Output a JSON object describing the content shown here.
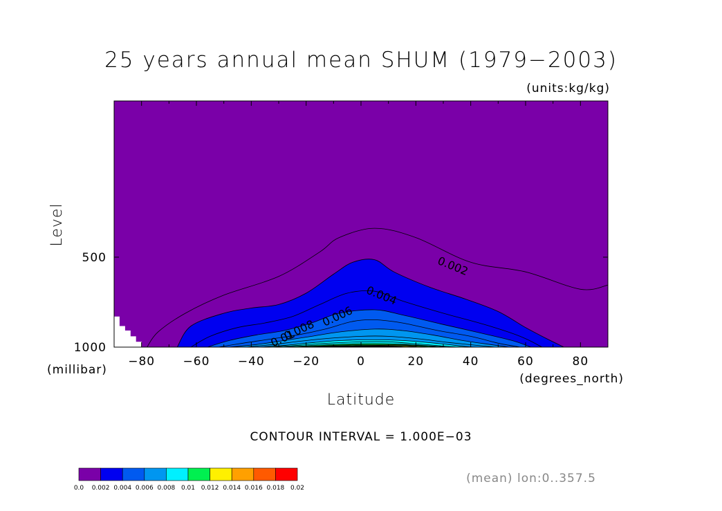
{
  "chart_data": {
    "type": "heatmap",
    "title": "25 years annual mean SHUM  (1979−2003)",
    "units": "(units:kg/kg)",
    "xlabel": "Latitude",
    "ylabel": "Level",
    "x_unit": "(degrees_north)",
    "y_unit": "(millibar)",
    "xlim": [
      -90,
      90
    ],
    "x_ticks": [
      -80,
      -60,
      -40,
      -20,
      0,
      20,
      40,
      60,
      80
    ],
    "x_tick_labels": [
      "−80",
      "−60",
      "−40",
      "−20",
      "0",
      "20",
      "40",
      "60",
      "80"
    ],
    "y_ticks": [
      500,
      1000
    ],
    "y_tick_labels": [
      "500",
      "1000"
    ],
    "contour_interval": "CONTOUR INTERVAL = 1.000E−03",
    "footer": "(mean) lon:0..357.5",
    "contour_labels": [
      {
        "text": "0.002",
        "lat": 33,
        "level": 550
      },
      {
        "text": "0.004",
        "lat": 7,
        "level": 690
      },
      {
        "text": "0.006",
        "lat": -8,
        "level": 810
      },
      {
        "text": "0.008",
        "lat": -22,
        "level": 900
      },
      {
        "text": "0.01",
        "lat": -28,
        "level": 960
      }
    ],
    "contours": [
      {
        "value": 0.001,
        "pts": [
          [
            -78,
            1000
          ],
          [
            -74,
            890
          ],
          [
            -64,
            770
          ],
          [
            -50,
            670
          ],
          [
            -30,
            580
          ],
          [
            -15,
            480
          ],
          [
            -8,
            430
          ],
          [
            5,
            400
          ],
          [
            20,
            430
          ],
          [
            40,
            520
          ],
          [
            60,
            560
          ],
          [
            80,
            640
          ],
          [
            90,
            620
          ]
        ]
      },
      {
        "value": 0.002,
        "pts": [
          [
            -67,
            1000
          ],
          [
            -62,
            850
          ],
          [
            -50,
            770
          ],
          [
            -40,
            740
          ],
          [
            -30,
            720
          ],
          [
            -20,
            660
          ],
          [
            -10,
            570
          ],
          [
            -3,
            520
          ],
          [
            5,
            510
          ],
          [
            12,
            560
          ],
          [
            25,
            630
          ],
          [
            38,
            690
          ],
          [
            50,
            760
          ],
          [
            60,
            860
          ],
          [
            68,
            940
          ],
          [
            74,
            1000
          ]
        ]
      },
      {
        "value": 0.003,
        "pts": [
          [
            -62,
            1000
          ],
          [
            -55,
            920
          ],
          [
            -45,
            860
          ],
          [
            -35,
            830
          ],
          [
            -25,
            790
          ],
          [
            -15,
            720
          ],
          [
            -5,
            660
          ],
          [
            5,
            650
          ],
          [
            15,
            700
          ],
          [
            30,
            770
          ],
          [
            45,
            840
          ],
          [
            58,
            920
          ],
          [
            66,
            1000
          ]
        ]
      },
      {
        "value": 0.004,
        "pts": [
          [
            -56,
            1000
          ],
          [
            -48,
            950
          ],
          [
            -38,
            910
          ],
          [
            -28,
            880
          ],
          [
            -18,
            830
          ],
          [
            -8,
            770
          ],
          [
            5,
            750
          ],
          [
            15,
            780
          ],
          [
            30,
            840
          ],
          [
            42,
            890
          ],
          [
            55,
            950
          ],
          [
            62,
            1000
          ]
        ]
      },
      {
        "value": 0.005,
        "pts": [
          [
            -52,
            1000
          ],
          [
            -43,
            970
          ],
          [
            -33,
            940
          ],
          [
            -23,
            910
          ],
          [
            -13,
            870
          ],
          [
            -3,
            820
          ],
          [
            5,
            810
          ],
          [
            15,
            830
          ],
          [
            28,
            880
          ],
          [
            40,
            920
          ],
          [
            50,
            970
          ],
          [
            58,
            1000
          ]
        ]
      },
      {
        "value": 0.006,
        "pts": [
          [
            -48,
            1000
          ],
          [
            -38,
            980
          ],
          [
            -28,
            950
          ],
          [
            -18,
            920
          ],
          [
            -8,
            890
          ],
          [
            5,
            870
          ],
          [
            15,
            880
          ],
          [
            26,
            910
          ],
          [
            37,
            950
          ],
          [
            47,
            980
          ],
          [
            54,
            1000
          ]
        ]
      },
      {
        "value": 0.007,
        "pts": [
          [
            -42,
            1000
          ],
          [
            -32,
            980
          ],
          [
            -22,
            955
          ],
          [
            -12,
            935
          ],
          [
            0,
            920
          ],
          [
            10,
            920
          ],
          [
            22,
            940
          ],
          [
            32,
            965
          ],
          [
            44,
            990
          ],
          [
            49,
            1000
          ]
        ]
      },
      {
        "value": 0.008,
        "pts": [
          [
            -37,
            1000
          ],
          [
            -27,
            985
          ],
          [
            -17,
            965
          ],
          [
            -7,
            950
          ],
          [
            5,
            945
          ],
          [
            15,
            950
          ],
          [
            27,
            970
          ],
          [
            38,
            995
          ],
          [
            43,
            1000
          ]
        ]
      },
      {
        "value": 0.009,
        "pts": [
          [
            -33,
            1000
          ],
          [
            -22,
            985
          ],
          [
            -12,
            970
          ],
          [
            0,
            960
          ],
          [
            10,
            960
          ],
          [
            22,
            978
          ],
          [
            32,
            995
          ],
          [
            37,
            1000
          ]
        ]
      },
      {
        "value": 0.01,
        "pts": [
          [
            -29,
            1000
          ],
          [
            -18,
            988
          ],
          [
            -8,
            978
          ],
          [
            5,
            973
          ],
          [
            15,
            978
          ],
          [
            25,
            990
          ],
          [
            32,
            1000
          ]
        ]
      },
      {
        "value": 0.011,
        "pts": [
          [
            -25,
            1000
          ],
          [
            -14,
            990
          ],
          [
            -4,
            983
          ],
          [
            7,
            981
          ],
          [
            18,
            985
          ],
          [
            26,
            995
          ],
          [
            29,
            1000
          ]
        ]
      },
      {
        "value": 0.012,
        "pts": [
          [
            -22,
            1000
          ],
          [
            -12,
            993
          ],
          [
            -2,
            988
          ],
          [
            8,
            986
          ],
          [
            18,
            990
          ],
          [
            25,
            1000
          ]
        ]
      },
      {
        "value": 0.013,
        "pts": [
          [
            -19,
            1000
          ],
          [
            -10,
            995
          ],
          [
            0,
            991
          ],
          [
            9,
            990
          ],
          [
            17,
            994
          ],
          [
            22,
            1000
          ]
        ]
      },
      {
        "value": 0.014,
        "pts": [
          [
            -16,
            1000
          ],
          [
            -7,
            996
          ],
          [
            2,
            993
          ],
          [
            10,
            993
          ],
          [
            17,
            1000
          ]
        ]
      },
      {
        "value": 0.015,
        "pts": [
          [
            -12,
            1000
          ],
          [
            -3,
            997
          ],
          [
            5,
            995
          ],
          [
            12,
            998
          ],
          [
            14,
            1000
          ]
        ]
      },
      {
        "value": 0.016,
        "pts": [
          [
            -7,
            1000
          ],
          [
            0,
            998
          ],
          [
            7,
            997
          ],
          [
            11,
            1000
          ]
        ]
      }
    ],
    "missing_region": [
      [
        -90,
        790
      ],
      [
        -88,
        790
      ],
      [
        -88,
        850
      ],
      [
        -86,
        850
      ],
      [
        -86,
        880
      ],
      [
        -84,
        880
      ],
      [
        -84,
        920
      ],
      [
        -82,
        920
      ],
      [
        -82,
        960
      ],
      [
        -80,
        960
      ],
      [
        -80,
        1000
      ],
      [
        -90,
        1000
      ]
    ],
    "colorbar": {
      "colors": [
        "#7a00a8",
        "#0000f0",
        "#005af0",
        "#0096f0",
        "#00f0ff",
        "#00f050",
        "#fff000",
        "#ffa000",
        "#ff5a00",
        "#ff0000"
      ],
      "labels": [
        "0.0",
        "0.002",
        "0.004",
        "0.006",
        "0.008",
        "0.01",
        "0.012",
        "0.014",
        "0.016",
        "0.018",
        "0.02"
      ]
    },
    "missing_color": "#ffffff",
    "background_color": "#7a00a8"
  }
}
